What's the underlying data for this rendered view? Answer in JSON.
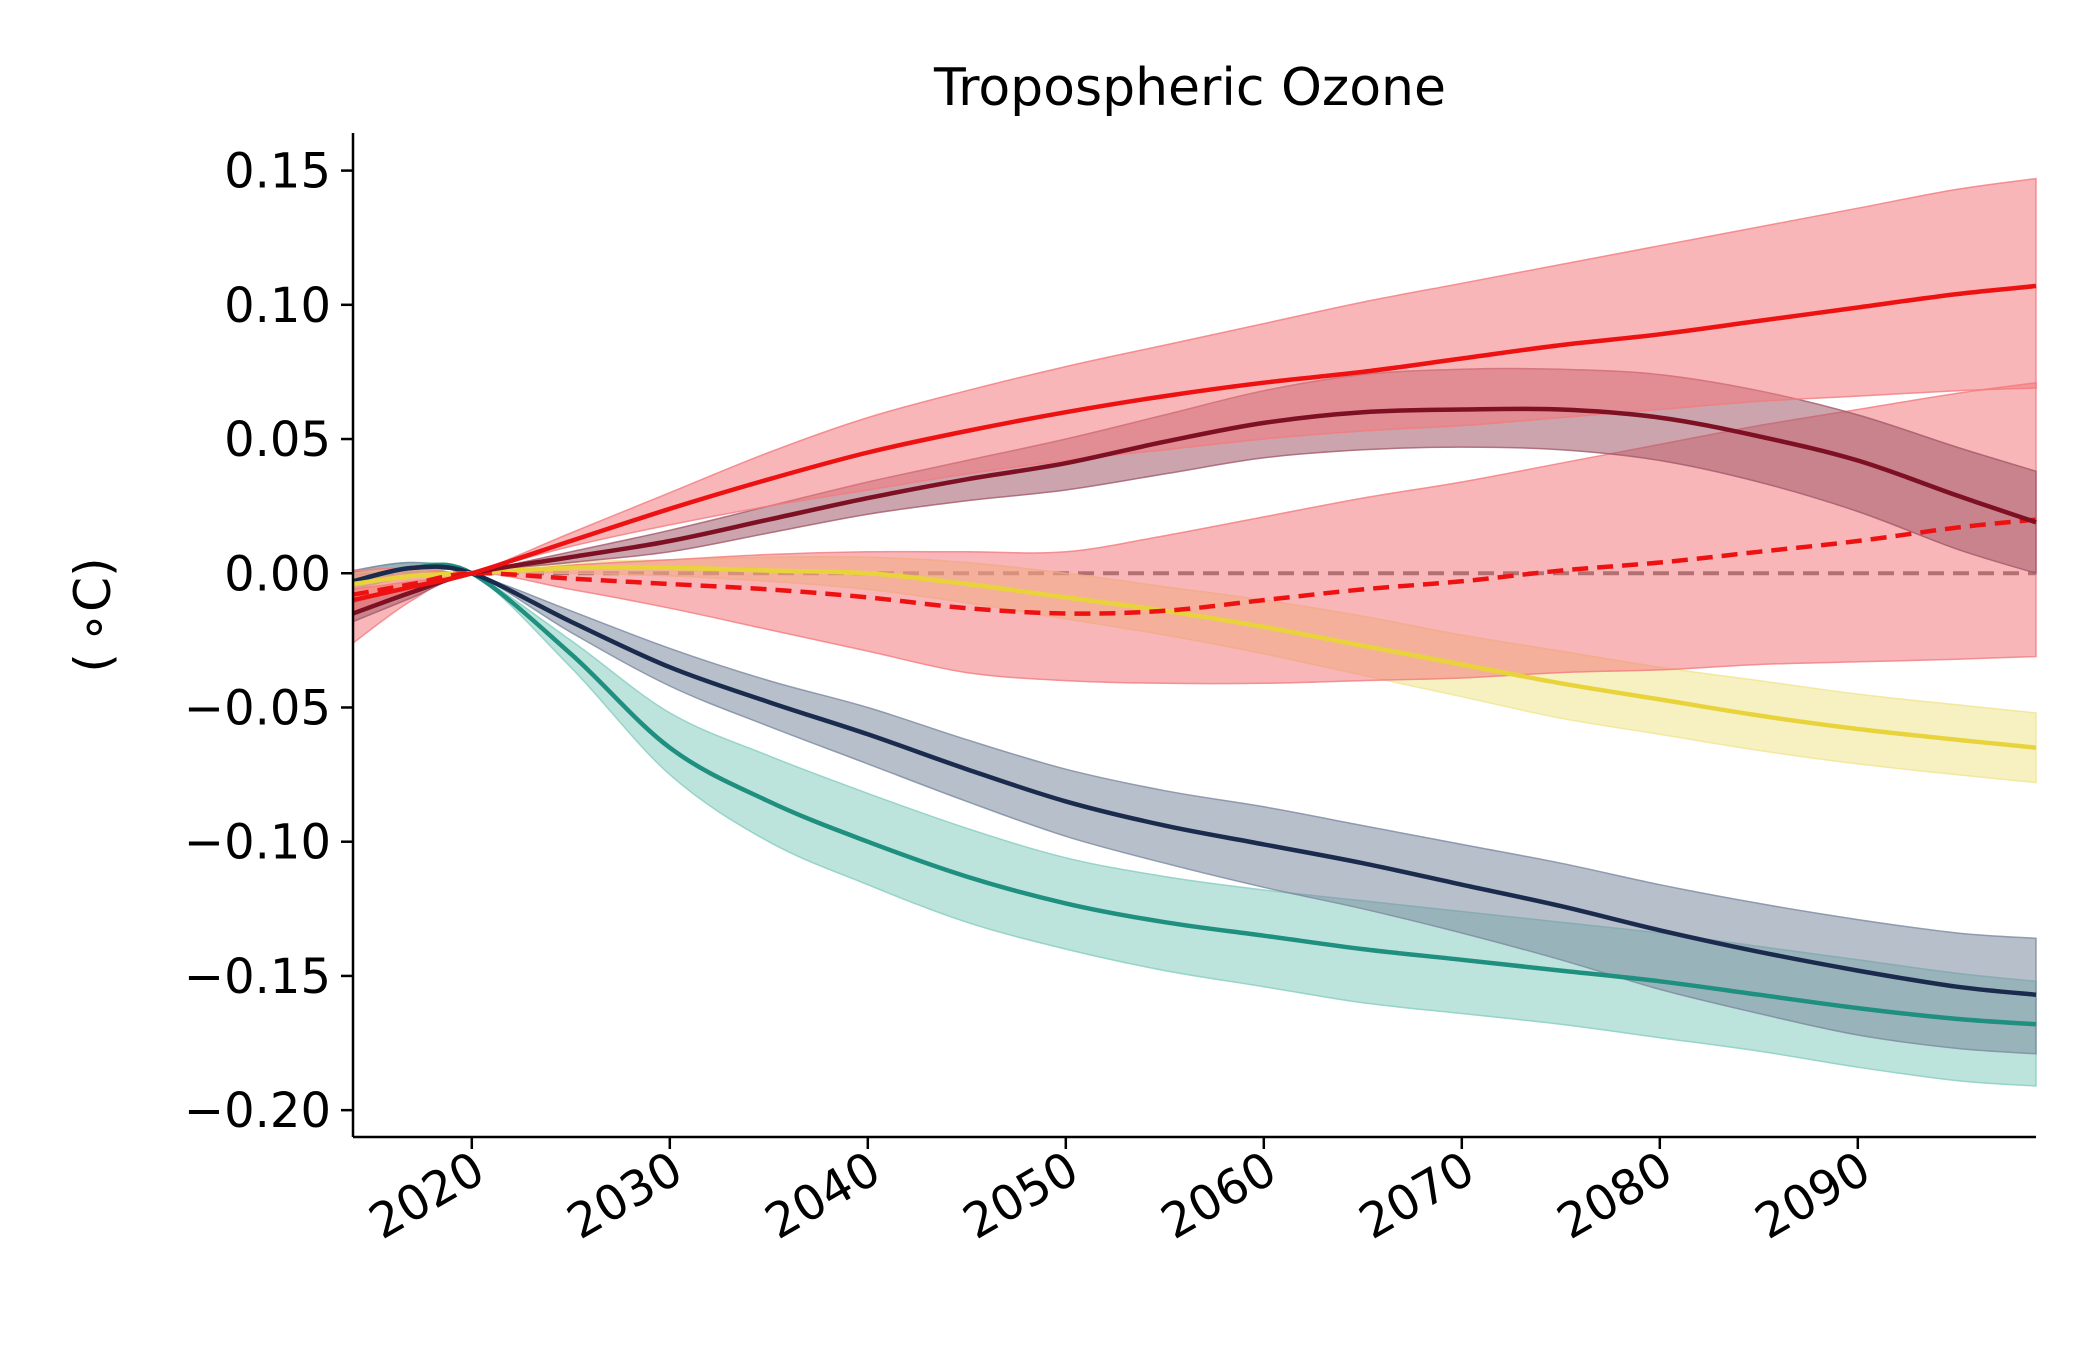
{
  "chart_data": {
    "type": "line",
    "title": "Tropospheric Ozone",
    "xlabel": "",
    "ylabel": "( ∘C)",
    "xlim": [
      2014,
      2099
    ],
    "ylim": [
      -0.21,
      0.164
    ],
    "x_ticks": [
      2020,
      2030,
      2040,
      2050,
      2060,
      2070,
      2080,
      2090
    ],
    "x_tick_labels": [
      "2020",
      "2030",
      "2040",
      "2050",
      "2060",
      "2070",
      "2080",
      "2090"
    ],
    "y_ticks": [
      0.15,
      0.1,
      0.05,
      0.0,
      -0.05,
      -0.1,
      -0.15,
      -0.2
    ],
    "y_tick_labels": [
      "0.15",
      "0.10",
      "0.05",
      "0.00",
      "−0.05",
      "−0.10",
      "−0.15",
      "−0.20"
    ],
    "grid": false,
    "legend": "none",
    "reference_line": {
      "y": 0,
      "style": "dashed",
      "color": "#555555"
    },
    "x": [
      2014,
      2017,
      2020,
      2025,
      2030,
      2035,
      2040,
      2045,
      2050,
      2055,
      2060,
      2065,
      2070,
      2075,
      2080,
      2085,
      2090,
      2095,
      2099
    ],
    "series": [
      {
        "color": "#1f8f7f",
        "band_color": "#86cdbf",
        "line_style": "solid",
        "values": [
          -0.003,
          0.002,
          0.0,
          -0.03,
          -0.065,
          -0.085,
          -0.1,
          -0.113,
          -0.123,
          -0.13,
          -0.135,
          -0.14,
          -0.144,
          -0.148,
          -0.152,
          -0.157,
          -0.162,
          -0.166,
          -0.168
        ],
        "lower": [
          -0.006,
          -0.001,
          0.0,
          -0.035,
          -0.075,
          -0.1,
          -0.116,
          -0.13,
          -0.14,
          -0.148,
          -0.154,
          -0.16,
          -0.164,
          -0.168,
          -0.173,
          -0.178,
          -0.184,
          -0.189,
          -0.191
        ],
        "upper": [
          0.001,
          0.004,
          0.0,
          -0.025,
          -0.052,
          -0.068,
          -0.082,
          -0.095,
          -0.106,
          -0.113,
          -0.118,
          -0.122,
          -0.126,
          -0.13,
          -0.134,
          -0.139,
          -0.144,
          -0.149,
          -0.152
        ]
      },
      {
        "color": "#1b2b4d",
        "band_color": "#7c8aa0",
        "line_style": "solid",
        "values": [
          -0.003,
          0.002,
          0.0,
          -0.018,
          -0.035,
          -0.048,
          -0.06,
          -0.073,
          -0.085,
          -0.094,
          -0.101,
          -0.108,
          -0.116,
          -0.124,
          -0.133,
          -0.141,
          -0.148,
          -0.154,
          -0.157
        ],
        "lower": [
          -0.006,
          -0.001,
          0.0,
          -0.022,
          -0.042,
          -0.057,
          -0.071,
          -0.085,
          -0.098,
          -0.108,
          -0.117,
          -0.125,
          -0.134,
          -0.144,
          -0.155,
          -0.164,
          -0.172,
          -0.177,
          -0.179
        ],
        "upper": [
          0.001,
          0.004,
          0.0,
          -0.014,
          -0.028,
          -0.04,
          -0.05,
          -0.062,
          -0.073,
          -0.081,
          -0.087,
          -0.094,
          -0.101,
          -0.108,
          -0.116,
          -0.123,
          -0.129,
          -0.134,
          -0.136
        ]
      },
      {
        "color": "#e8d43a",
        "band_color": "#f0e590",
        "line_style": "solid",
        "values": [
          -0.004,
          -0.001,
          0.0,
          0.002,
          0.002,
          0.001,
          0.0,
          -0.004,
          -0.009,
          -0.014,
          -0.02,
          -0.027,
          -0.034,
          -0.041,
          -0.047,
          -0.053,
          -0.058,
          -0.062,
          -0.065
        ],
        "lower": [
          -0.008,
          -0.004,
          0.0,
          0.0,
          -0.001,
          -0.003,
          -0.006,
          -0.011,
          -0.017,
          -0.023,
          -0.03,
          -0.038,
          -0.046,
          -0.054,
          -0.06,
          -0.066,
          -0.071,
          -0.075,
          -0.078
        ],
        "upper": [
          0.0,
          0.002,
          0.0,
          0.004,
          0.005,
          0.006,
          0.006,
          0.004,
          0.0,
          -0.005,
          -0.01,
          -0.016,
          -0.023,
          -0.029,
          -0.035,
          -0.04,
          -0.045,
          -0.049,
          -0.052
        ]
      },
      {
        "color": "#ee1111",
        "band_color": "#f47a7e",
        "line_style": "dashed",
        "values": [
          -0.008,
          -0.004,
          0.0,
          -0.002,
          -0.004,
          -0.006,
          -0.009,
          -0.013,
          -0.015,
          -0.014,
          -0.01,
          -0.006,
          -0.003,
          0.001,
          0.004,
          0.008,
          0.012,
          0.017,
          0.02
        ],
        "lower": [
          -0.026,
          -0.01,
          0.0,
          -0.006,
          -0.013,
          -0.021,
          -0.029,
          -0.037,
          -0.04,
          -0.041,
          -0.041,
          -0.04,
          -0.039,
          -0.037,
          -0.036,
          -0.034,
          -0.033,
          -0.032,
          -0.031
        ],
        "upper": [
          0.001,
          0.002,
          0.0,
          0.003,
          0.005,
          0.007,
          0.008,
          0.008,
          0.008,
          0.014,
          0.021,
          0.028,
          0.034,
          0.041,
          0.048,
          0.055,
          0.061,
          0.067,
          0.071
        ]
      },
      {
        "color": "#7d1022",
        "band_color": "#a25a6a",
        "line_style": "solid",
        "values": [
          -0.015,
          -0.007,
          0.0,
          0.006,
          0.012,
          0.02,
          0.028,
          0.035,
          0.041,
          0.049,
          0.056,
          0.06,
          0.061,
          0.061,
          0.058,
          0.051,
          0.042,
          0.029,
          0.019
        ],
        "lower": [
          -0.018,
          -0.009,
          0.0,
          0.004,
          0.008,
          0.015,
          0.022,
          0.027,
          0.031,
          0.037,
          0.043,
          0.046,
          0.047,
          0.046,
          0.042,
          0.034,
          0.023,
          0.009,
          0.0
        ],
        "upper": [
          -0.011,
          -0.005,
          0.0,
          0.008,
          0.016,
          0.025,
          0.034,
          0.042,
          0.05,
          0.059,
          0.068,
          0.074,
          0.076,
          0.076,
          0.074,
          0.068,
          0.059,
          0.047,
          0.038
        ]
      },
      {
        "color": "#ee1111",
        "band_color": "#f47a7e",
        "line_style": "solid",
        "values": [
          -0.01,
          -0.005,
          0.0,
          0.012,
          0.024,
          0.035,
          0.045,
          0.053,
          0.06,
          0.066,
          0.071,
          0.075,
          0.08,
          0.085,
          0.089,
          0.094,
          0.099,
          0.104,
          0.107
        ],
        "lower": [
          -0.014,
          -0.007,
          0.0,
          0.01,
          0.018,
          0.025,
          0.031,
          0.037,
          0.042,
          0.046,
          0.05,
          0.053,
          0.055,
          0.058,
          0.061,
          0.064,
          0.066,
          0.068,
          0.069
        ],
        "upper": [
          -0.006,
          -0.003,
          0.0,
          0.015,
          0.03,
          0.045,
          0.058,
          0.068,
          0.077,
          0.085,
          0.093,
          0.101,
          0.108,
          0.115,
          0.122,
          0.129,
          0.136,
          0.143,
          0.147
        ]
      }
    ]
  }
}
